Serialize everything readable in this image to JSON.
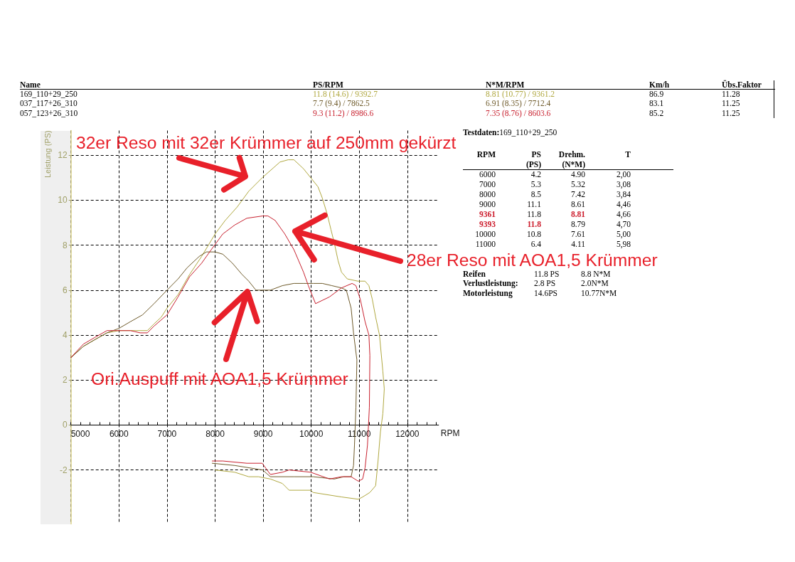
{
  "chart_data": [
    {
      "type": "other",
      "annotations": [
        "Name",
        "PS/RPM",
        "N*M/RPM",
        "Km/h",
        "Übs.Faktor",
        "169_110+29_250",
        "11.8 (14.6) / 9392.7",
        "8.81 (10.77) / 9361.2",
        "86.9",
        "11.28",
        "037_117+26_310",
        "7.7 (9.4) / 7862.5",
        "6.91 (8.35) / 7712.4",
        "83.1",
        "11.25",
        "057_123+26_310",
        "9.3 (11.2) / 8986.6",
        "7.35 (8.76) / 8603.6",
        "85.2",
        "11.25"
      ]
    },
    {
      "type": "line",
      "xlabel": "RPM",
      "ylabel": "Leistung (PS)",
      "xlim": [
        5000,
        12650
      ],
      "ylim": [
        -4.4,
        13.1
      ],
      "xticks": [
        5000,
        {
          "value": 5200,
          "label": null
        },
        {
          "value": 5400,
          "label": null
        },
        {
          "value": 5600,
          "label": null
        },
        {
          "value": 5800,
          "label": null
        },
        6000,
        {
          "value": 6200,
          "label": null
        },
        {
          "value": 6400,
          "label": null
        },
        {
          "value": 6600,
          "label": null
        },
        {
          "value": 6800,
          "label": null
        },
        7000,
        {
          "value": 7200,
          "label": null
        },
        {
          "value": 7400,
          "label": null
        },
        {
          "value": 7600,
          "label": null
        },
        {
          "value": 7800,
          "label": null
        },
        8000,
        {
          "value": 8200,
          "label": null
        },
        {
          "value": 8400,
          "label": null
        },
        {
          "value": 8600,
          "label": null
        },
        {
          "value": 8800,
          "label": null
        },
        9000,
        {
          "value": 9200,
          "label": null
        },
        {
          "value": 9400,
          "label": null
        },
        {
          "value": 9600,
          "label": null
        },
        {
          "value": 9800,
          "label": null
        },
        10000,
        {
          "value": 10200,
          "label": null
        },
        {
          "value": 10400,
          "label": null
        },
        {
          "value": 10600,
          "label": null
        },
        {
          "value": 10800,
          "label": null
        },
        11000,
        {
          "value": 11200,
          "label": null
        },
        {
          "value": 11400,
          "label": null
        },
        {
          "value": 11600,
          "label": null
        },
        {
          "value": 11800,
          "label": null
        },
        12000,
        {
          "value": 12200,
          "label": null
        },
        {
          "value": 12400,
          "label": null
        },
        {
          "value": 12600,
          "label": null
        }
      ],
      "yticks": [
        -2,
        0,
        2,
        4,
        6,
        8,
        10,
        12
      ],
      "grid": true,
      "annotations": [
        "32er Reso mit 32er Krümmer auf 250mm gekürzt",
        "28er Reso mit AOA1,5 Krümmer",
        "Ori.Auspuff mit AOA1,5 Krümmer"
      ],
      "series": [
        {
          "color": "#b0a840",
          "x": [
            5000,
            5260,
            5500,
            5750,
            6000,
            6240,
            6440,
            6590,
            6730,
            6880,
            7000,
            7230,
            7470,
            7720,
            8000,
            8210,
            8460,
            8700,
            8980,
            9350,
            9520,
            9640,
            9840,
            9990,
            10140,
            10230,
            10330,
            10410,
            10480,
            10560,
            10630,
            10750,
            10970,
            11120,
            11200,
            11270,
            11340,
            11420,
            11490,
            11520,
            11490,
            11440,
            11390,
            11340,
            11220,
            11070,
            10980,
            10630,
            10040,
            9990,
            9540,
            9400,
            9150,
            8900,
            8700,
            8410,
            8000
          ],
          "values": [
            3.0,
            3.5,
            3.8,
            4.1,
            4.2,
            4.2,
            4.2,
            4.2,
            4.5,
            4.8,
            5.2,
            5.8,
            6.7,
            7.5,
            8.5,
            9.1,
            9.7,
            10.4,
            11.0,
            11.7,
            11.8,
            11.8,
            11.4,
            11.0,
            10.6,
            10.1,
            9.4,
            8.7,
            8.1,
            7.3,
            6.8,
            6.5,
            6.4,
            6.4,
            6.2,
            5.6,
            4.8,
            4.0,
            2.4,
            1.6,
            0.5,
            -0.3,
            -1.6,
            -2.7,
            -3.0,
            -3.2,
            -3.3,
            -3.2,
            -3.0,
            -2.9,
            -2.9,
            -2.6,
            -2.4,
            -2.3,
            -2.3,
            -2.1,
            -2.0
          ]
        },
        {
          "color": "#6e5a2a",
          "x": [
            5000,
            5260,
            5500,
            5750,
            6000,
            6240,
            6490,
            6730,
            7000,
            7230,
            7420,
            7670,
            7820,
            8000,
            8160,
            8360,
            8560,
            8700,
            8850,
            9000,
            9150,
            9400,
            9640,
            9840,
            10040,
            10230,
            10430,
            10630,
            10730,
            10830,
            10880,
            10950,
            10930,
            10900,
            10880,
            10830,
            10680,
            10480,
            10040,
            9640,
            9150,
            8990,
            8410,
            7940
          ],
          "values": [
            3.0,
            3.5,
            3.8,
            4.1,
            4.3,
            4.6,
            4.9,
            5.4,
            6.0,
            6.5,
            7.0,
            7.5,
            7.7,
            7.7,
            7.6,
            7.2,
            6.7,
            6.4,
            6.0,
            6.0,
            6.0,
            6.2,
            6.3,
            6.3,
            6.3,
            6.3,
            6.2,
            6.1,
            6.0,
            5.2,
            4.1,
            2.9,
            0.8,
            -0.9,
            -1.8,
            -2.3,
            -2.3,
            -2.4,
            -2.3,
            -2.3,
            -2.3,
            -2.0,
            -1.8,
            -1.7
          ]
        },
        {
          "color": "#c8202e",
          "x": [
            5000,
            5260,
            5500,
            5750,
            5900,
            6000,
            6240,
            6440,
            6590,
            6730,
            7000,
            7230,
            7470,
            7720,
            7920,
            8160,
            8410,
            8660,
            8990,
            9100,
            9250,
            9450,
            9640,
            9740,
            9840,
            9940,
            10090,
            10380,
            10630,
            10850,
            10930,
            11020,
            11120,
            11200,
            11220,
            11210,
            11170,
            11120,
            11070,
            10980,
            10830,
            10630,
            10380,
            9990,
            9540,
            9400,
            9150,
            8980,
            8660,
            8160,
            7940
          ],
          "values": [
            3.0,
            3.6,
            3.9,
            4.2,
            4.2,
            4.2,
            4.2,
            4.1,
            4.1,
            4.4,
            4.9,
            5.7,
            6.6,
            7.2,
            7.8,
            8.5,
            8.9,
            9.2,
            9.3,
            9.3,
            9.1,
            8.5,
            7.8,
            7.3,
            6.8,
            6.2,
            5.4,
            5.7,
            6.1,
            6.3,
            6.2,
            5.6,
            4.6,
            4.0,
            3.1,
            0.8,
            -0.9,
            -1.9,
            -2.4,
            -2.5,
            -2.3,
            -2.3,
            -2.4,
            -2.1,
            -2.0,
            -2.1,
            -2.2,
            -1.7,
            -1.7,
            -1.6,
            -1.6
          ]
        }
      ]
    },
    {
      "type": "other",
      "title": "Testdaten:169_110+29_250",
      "annotations": [
        "RPM",
        "PS\n(PS)",
        "Drehm.\n(N*M)",
        "T",
        "6000",
        "4.2",
        "4.90",
        "2,00",
        "7000",
        "5.3",
        "5.32",
        "3,08",
        "8000",
        "8.5",
        "7.42",
        "3,84",
        "9000",
        "11.1",
        "8.61",
        "4,46",
        "9361",
        "11.8",
        "8.81",
        "4,66",
        "9393",
        "11.8",
        "8.79",
        "4,70",
        "10000",
        "10.8",
        "7.61",
        "5,00",
        "11000",
        "6.4",
        "4.11",
        "5,98"
      ]
    },
    {
      "type": "other",
      "annotations": [
        "Reifen",
        "11.8 PS",
        "8.8 N*M",
        "Verlustleistung:",
        "2.8 PS",
        "2.0N*M",
        "Motorleistung",
        "14.6PS",
        "10.77N*M"
      ]
    }
  ]
}
